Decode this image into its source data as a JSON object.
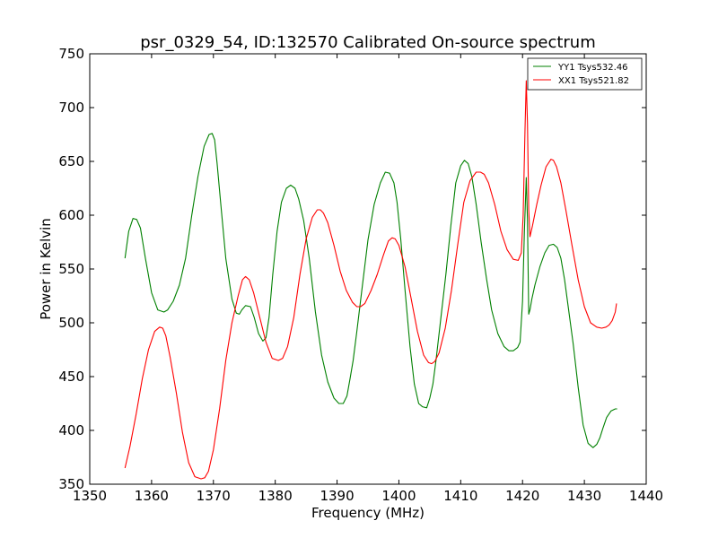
{
  "chart_data": {
    "type": "line",
    "title": "psr_0329_54, ID:132570 Calibrated On-source spectrum",
    "xlabel": "Frequency (MHz)",
    "ylabel": "Power in Kelvin",
    "xlim": [
      1350,
      1440
    ],
    "ylim": [
      350,
      750
    ],
    "xticks": [
      1350,
      1360,
      1370,
      1380,
      1390,
      1400,
      1410,
      1420,
      1430,
      1440
    ],
    "yticks": [
      350,
      400,
      450,
      500,
      550,
      600,
      650,
      700,
      750
    ],
    "grid": false,
    "legend_position": "top-right",
    "series": [
      {
        "name": "YY1 Tsys532.46",
        "color": "#008000",
        "x": [
          1355.7,
          1356.3,
          1357.0,
          1357.6,
          1358.2,
          1359.0,
          1360.0,
          1361.0,
          1362.0,
          1362.6,
          1363.5,
          1364.5,
          1365.5,
          1366.5,
          1367.5,
          1368.5,
          1369.3,
          1369.8,
          1370.2,
          1370.6,
          1371.2,
          1372.0,
          1373.0,
          1373.7,
          1374.2,
          1374.6,
          1375.2,
          1376.0,
          1376.6,
          1377.3,
          1378.0,
          1378.5,
          1379.0,
          1379.6,
          1380.3,
          1381.0,
          1381.8,
          1382.5,
          1383.2,
          1383.8,
          1384.6,
          1385.5,
          1386.5,
          1387.5,
          1388.5,
          1389.5,
          1390.3,
          1391.0,
          1391.6,
          1392.1,
          1392.6,
          1393.2,
          1394.0,
          1395.0,
          1396.0,
          1397.0,
          1397.8,
          1398.5,
          1399.2,
          1399.7,
          1400.3,
          1401.0,
          1401.8,
          1402.5,
          1403.2,
          1403.8,
          1404.5,
          1405.0,
          1405.5,
          1406.0,
          1406.8,
          1407.6,
          1408.4,
          1409.2,
          1410.0,
          1410.6,
          1411.2,
          1411.8,
          1412.5,
          1413.3,
          1414.2,
          1415.0,
          1416.0,
          1417.0,
          1417.8,
          1418.5,
          1419.2,
          1419.6,
          1420.0,
          1420.3,
          1420.6,
          1420.8,
          1421.0,
          1421.2,
          1421.5,
          1422.0,
          1422.8,
          1423.6,
          1424.3,
          1425.0,
          1425.6,
          1426.2,
          1426.8,
          1427.5,
          1428.2,
          1429.0,
          1429.8,
          1430.6,
          1431.4,
          1432.0,
          1432.5,
          1433.0,
          1433.6,
          1434.3,
          1435.0,
          1435.3
        ],
        "values": [
          560,
          585,
          597,
          596,
          588,
          560,
          528,
          512,
          510,
          512,
          520,
          535,
          560,
          600,
          636,
          664,
          675,
          676,
          670,
          648,
          610,
          560,
          522,
          509,
          508,
          512,
          516,
          515,
          505,
          490,
          483,
          486,
          505,
          545,
          585,
          612,
          625,
          628,
          625,
          615,
          595,
          560,
          510,
          470,
          445,
          430,
          425,
          425,
          432,
          448,
          465,
          492,
          530,
          577,
          610,
          630,
          640,
          639,
          630,
          612,
          578,
          530,
          478,
          443,
          425,
          422,
          421,
          430,
          443,
          465,
          505,
          545,
          590,
          630,
          646,
          651,
          648,
          636,
          610,
          575,
          540,
          512,
          490,
          478,
          474,
          474,
          477,
          482,
          520,
          585,
          635,
          595,
          508,
          512,
          522,
          535,
          552,
          565,
          572,
          573,
          570,
          560,
          540,
          510,
          480,
          440,
          405,
          388,
          384,
          387,
          393,
          402,
          412,
          418,
          420,
          420
        ]
      },
      {
        "name": "XX1 Tsys521.82",
        "color": "#ff0000",
        "x": [
          1355.7,
          1356.5,
          1357.5,
          1358.5,
          1359.5,
          1360.5,
          1361.3,
          1361.8,
          1362.3,
          1363.0,
          1364.0,
          1365.0,
          1366.0,
          1367.0,
          1368.0,
          1368.6,
          1369.2,
          1370.0,
          1371.0,
          1372.0,
          1373.0,
          1374.0,
          1374.7,
          1375.2,
          1375.8,
          1376.5,
          1377.5,
          1378.5,
          1379.5,
          1380.5,
          1381.2,
          1382.0,
          1383.0,
          1384.0,
          1385.0,
          1386.0,
          1386.8,
          1387.3,
          1387.8,
          1388.5,
          1389.5,
          1390.5,
          1391.5,
          1392.5,
          1393.2,
          1393.8,
          1394.5,
          1395.5,
          1396.5,
          1397.5,
          1398.3,
          1398.9,
          1399.4,
          1400.0,
          1401.0,
          1402.0,
          1403.0,
          1404.0,
          1404.8,
          1405.3,
          1405.8,
          1406.5,
          1407.5,
          1408.5,
          1409.5,
          1410.5,
          1411.5,
          1412.5,
          1413.2,
          1413.8,
          1414.5,
          1415.5,
          1416.5,
          1417.5,
          1418.5,
          1419.3,
          1419.8,
          1420.1,
          1420.4,
          1420.6,
          1420.8,
          1421.0,
          1421.2,
          1421.6,
          1422.3,
          1423.0,
          1423.8,
          1424.6,
          1425.0,
          1425.5,
          1426.2,
          1427.0,
          1428.0,
          1429.0,
          1430.0,
          1431.0,
          1432.0,
          1432.8,
          1433.5,
          1434.0,
          1434.5,
          1435.0,
          1435.2
        ],
        "values": [
          365,
          385,
          415,
          448,
          475,
          492,
          496,
          495,
          488,
          468,
          435,
          398,
          370,
          357,
          355,
          356,
          362,
          382,
          420,
          465,
          500,
          525,
          540,
          543,
          540,
          528,
          505,
          482,
          467,
          465,
          467,
          478,
          505,
          545,
          578,
          598,
          605,
          605,
          602,
          593,
          572,
          548,
          530,
          519,
          515,
          515,
          518,
          530,
          545,
          563,
          576,
          579,
          578,
          572,
          552,
          522,
          492,
          470,
          463,
          462,
          464,
          472,
          495,
          530,
          572,
          612,
          632,
          640,
          640,
          638,
          630,
          610,
          585,
          568,
          559,
          558,
          565,
          600,
          680,
          725,
          685,
          605,
          580,
          590,
          610,
          628,
          645,
          652,
          651,
          645,
          630,
          605,
          572,
          540,
          515,
          500,
          496,
          495,
          496,
          498,
          502,
          510,
          518
        ]
      }
    ]
  }
}
